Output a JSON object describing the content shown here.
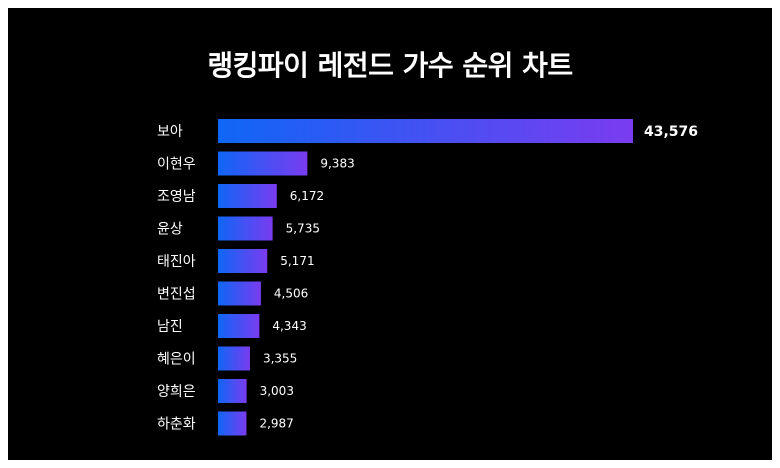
{
  "title": "랭킹파이 레전드 가수 순위 차트",
  "colors": {
    "background": "#000000",
    "bar_start": "#0f66f5",
    "bar_end": "#7a3cf0",
    "text": "#ffffff"
  },
  "chart_data": {
    "type": "bar",
    "orientation": "horizontal",
    "title": "랭킹파이 레전드 가수 순위 차트",
    "xlabel": "",
    "ylabel": "",
    "categories": [
      "보아",
      "이현우",
      "조영남",
      "윤상",
      "태진아",
      "변진섭",
      "남진",
      "혜은이",
      "양희은",
      "하춘화"
    ],
    "values": [
      43576,
      9383,
      6172,
      5735,
      5171,
      4506,
      4343,
      3355,
      3003,
      2987
    ],
    "value_labels": [
      "43,576",
      "9,383",
      "6,172",
      "5,735",
      "5,171",
      "4,506",
      "4,343",
      "3,355",
      "3,003",
      "2,987"
    ],
    "xlim": [
      0,
      43576
    ],
    "grid": false,
    "legend": "none"
  }
}
